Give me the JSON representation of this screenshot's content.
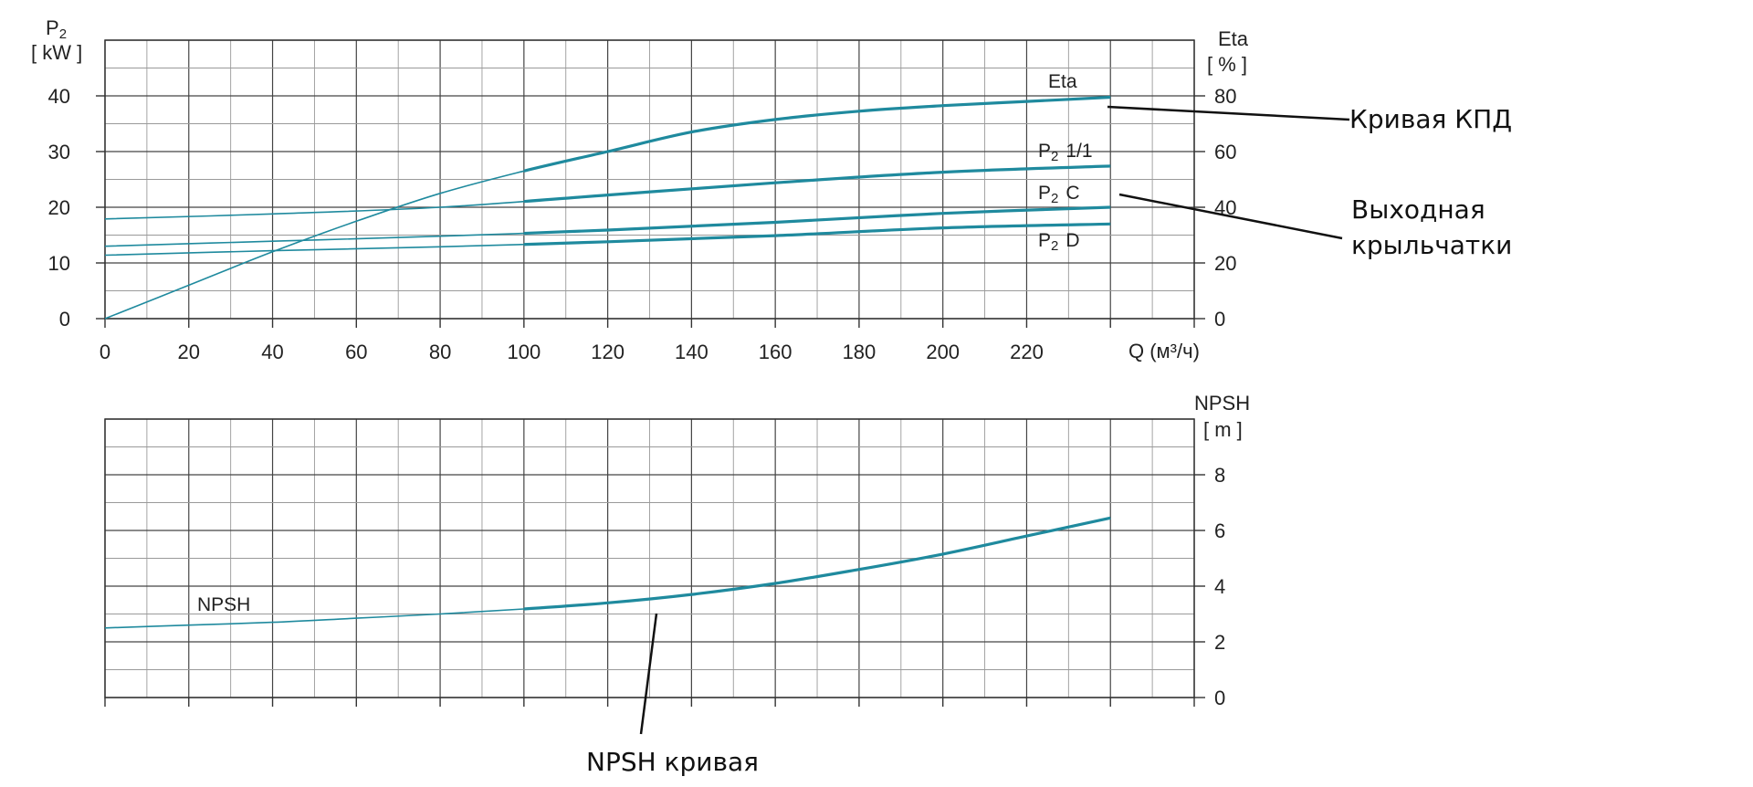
{
  "chart_data": [
    {
      "type": "line",
      "x_axis": {
        "label": "Q (м³/ч)",
        "range": [
          0,
          240
        ],
        "ticks": [
          "0",
          "20",
          "40",
          "60",
          "80",
          "100",
          "120",
          "140",
          "160",
          "180",
          "200",
          "220"
        ]
      },
      "y_left": {
        "label_main": "P",
        "label_sub": "2",
        "label_unit": "[ kW ]",
        "range": [
          0,
          50
        ],
        "ticks": [
          "0",
          "10",
          "20",
          "30",
          "40"
        ]
      },
      "y_right": {
        "label_main": "Eta",
        "label_unit": "[ % ]",
        "range": [
          0,
          100
        ],
        "ticks": [
          "0",
          "20",
          "40",
          "60",
          "80"
        ]
      },
      "grid": true,
      "series": [
        {
          "name": "Eta",
          "label_main": "Eta",
          "label_sub": "",
          "label_suffix": "",
          "axis": "right",
          "color": "#1f8a9e",
          "x": [
            0,
            20,
            40,
            60,
            80,
            100,
            120,
            140,
            160,
            180,
            200,
            220,
            240
          ],
          "y": [
            0,
            12,
            24,
            35,
            45,
            53,
            60,
            67,
            71.5,
            74.5,
            76.5,
            78,
            79.5
          ]
        },
        {
          "name": "P2 1/1",
          "label_main": "P",
          "label_sub": "2",
          "label_suffix": "1/1",
          "axis": "left",
          "color": "#1f8a9e",
          "x": [
            0,
            40,
            80,
            120,
            160,
            200,
            240
          ],
          "y": [
            17.9,
            18.8,
            20,
            22.2,
            24.4,
            26.3,
            27.4
          ]
        },
        {
          "name": "P2 C",
          "label_main": "P",
          "label_sub": "2",
          "label_suffix": "C",
          "axis": "left",
          "color": "#1f8a9e",
          "x": [
            0,
            40,
            80,
            120,
            160,
            200,
            240
          ],
          "y": [
            13,
            13.9,
            14.8,
            15.9,
            17.3,
            18.9,
            20
          ]
        },
        {
          "name": "P2 D",
          "label_main": "P",
          "label_sub": "2",
          "label_suffix": "D",
          "axis": "left",
          "color": "#1f8a9e",
          "x": [
            0,
            40,
            80,
            120,
            160,
            200,
            240
          ],
          "y": [
            11.4,
            12.2,
            12.9,
            13.8,
            14.9,
            16.3,
            17
          ]
        }
      ]
    },
    {
      "type": "line",
      "x_axis": {
        "range": [
          0,
          260
        ]
      },
      "y_right": {
        "label_main": "NPSH",
        "label_unit": "[ m ]",
        "range": [
          0,
          10
        ],
        "ticks": [
          "0",
          "2",
          "4",
          "6",
          "8"
        ]
      },
      "grid": true,
      "series": [
        {
          "name": "NPSH",
          "label_main": "NPSH",
          "color": "#1f8a9e",
          "x": [
            0,
            20,
            40,
            60,
            80,
            100,
            120,
            140,
            160,
            180,
            200,
            220,
            240
          ],
          "y": [
            2.5,
            2.6,
            2.7,
            2.85,
            3.0,
            3.18,
            3.4,
            3.7,
            4.1,
            4.6,
            5.15,
            5.8,
            6.45
          ]
        }
      ]
    }
  ],
  "annotations": {
    "eta_note": "Кривая КПД",
    "impeller_note_line1": "Выходная",
    "impeller_note_line2": "крыльчатки",
    "npsh_note": "NPSH кривая"
  }
}
